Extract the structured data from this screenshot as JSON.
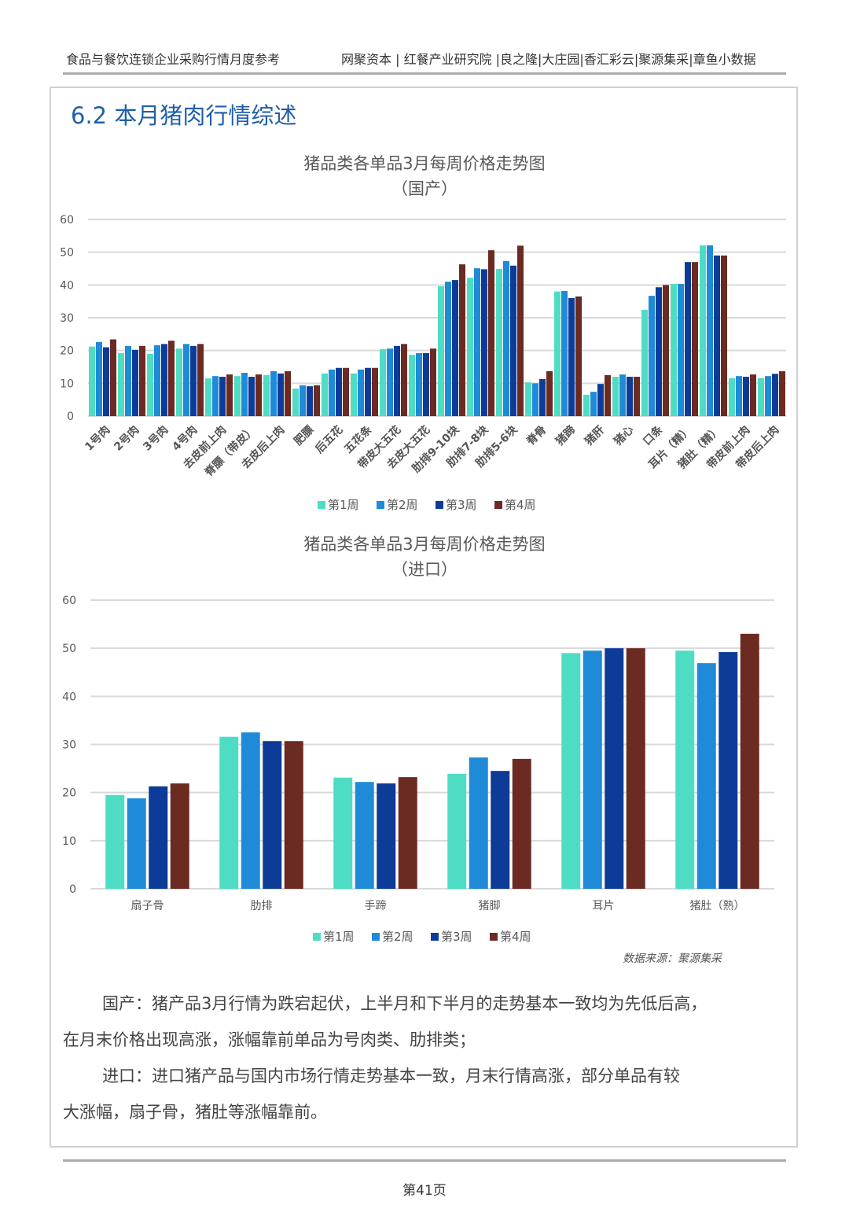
{
  "header": {
    "left": "食品与餐饮连锁企业采购行情月度参考",
    "right": "网聚资本 | 红餐产业研究院 |良之隆|大庄园|香汇彩云|聚源集采|章鱼小数据"
  },
  "section_title": "6.2 本月猪肉行情综述",
  "colors": {
    "week1": "#4fdcc4",
    "week2": "#1f8ad8",
    "week3": "#0c3c98",
    "week4": "#6b2a22",
    "title": "#1f5fa8"
  },
  "chart_data": [
    {
      "type": "bar",
      "title": "猪品类各单品3月每周价格走势图",
      "subtitle": "（国产）",
      "ylim": [
        0,
        60
      ],
      "yticks": [
        "0",
        "10",
        "20",
        "30",
        "40",
        "50",
        "60"
      ],
      "grid": true,
      "legend_position": "bottom",
      "categories": [
        "1号肉",
        "2号肉",
        "3号肉",
        "4号肉",
        "去皮前上肉",
        "脊膘（带皮）",
        "去皮后上肉",
        "肥膘",
        "后五花",
        "五花条",
        "带皮大五花",
        "去皮大五花",
        "肋排9-10块",
        "肋排7-8块",
        "肋排5-6块",
        "脊骨",
        "猪蹄",
        "猪肝",
        "猪心",
        "口条",
        "耳片（精）",
        "猪肚（精）",
        "带皮前上肉",
        "带皮后上肉"
      ],
      "series": [
        {
          "name": "第1周",
          "values": [
            21.2,
            19.2,
            19,
            20.6,
            11.5,
            12.2,
            12.5,
            8.4,
            13,
            13,
            20.4,
            18.7,
            39.6,
            42.2,
            44.9,
            10.3,
            38,
            6.5,
            12,
            32.4,
            40.3,
            52.1,
            11.6,
            11.6
          ]
        },
        {
          "name": "第2周",
          "values": [
            22.6,
            21.4,
            21.6,
            22,
            12.2,
            13.2,
            13.7,
            9.4,
            14.2,
            14.2,
            20.6,
            19.2,
            41,
            45.1,
            47.3,
            10,
            38.2,
            7.4,
            12.7,
            36.7,
            40.3,
            52.1,
            12.2,
            12.2
          ]
        },
        {
          "name": "第3周",
          "values": [
            21,
            20.2,
            22,
            21.4,
            12,
            12,
            13,
            9.1,
            14.7,
            14.7,
            21.4,
            19.2,
            41.5,
            44.8,
            45.9,
            11.3,
            36,
            9.8,
            12,
            39.3,
            47,
            49,
            12,
            12.9
          ]
        },
        {
          "name": "第4周",
          "values": [
            23.4,
            21.4,
            23,
            22,
            12.7,
            12.7,
            13.7,
            9.4,
            14.7,
            14.7,
            22,
            20.6,
            46.3,
            50.6,
            52,
            13.7,
            36.5,
            12.5,
            12,
            40,
            47,
            49,
            12.7,
            13.7
          ]
        }
      ]
    },
    {
      "type": "bar",
      "title": "猪品类各单品3月每周价格走势图",
      "subtitle": "（进口）",
      "ylim": [
        0,
        60
      ],
      "yticks": [
        "0",
        "10",
        "20",
        "30",
        "40",
        "50",
        "60"
      ],
      "grid": true,
      "legend_position": "bottom",
      "categories": [
        "扇子骨",
        "肋排",
        "手蹄",
        "猪脚",
        "耳片",
        "猪肚（熟）"
      ],
      "series": [
        {
          "name": "第1周",
          "values": [
            19.5,
            31.6,
            23.1,
            23.9,
            49,
            49.5
          ]
        },
        {
          "name": "第2周",
          "values": [
            18.8,
            32.5,
            22.2,
            27.3,
            49.5,
            46.9
          ]
        },
        {
          "name": "第3周",
          "values": [
            21.3,
            30.7,
            21.9,
            24.5,
            50,
            49.2
          ]
        },
        {
          "name": "第4周",
          "values": [
            21.9,
            30.7,
            23.2,
            27,
            50,
            53
          ]
        }
      ]
    }
  ],
  "source": "数据来源：聚源集采",
  "paragraphs": [
    "国产：猪产品3月行情为跌宕起伏，上半月和下半月的走势基本一致均为先低后高，",
    "在月末价格出现高涨，涨幅靠前单品为号肉类、肋排类；",
    "进口：进口猪产品与国内市场行情走势基本一致，月末行情高涨，部分单品有较",
    "大涨幅，扇子骨，猪肚等涨幅靠前。"
  ],
  "page_number": "第41页"
}
